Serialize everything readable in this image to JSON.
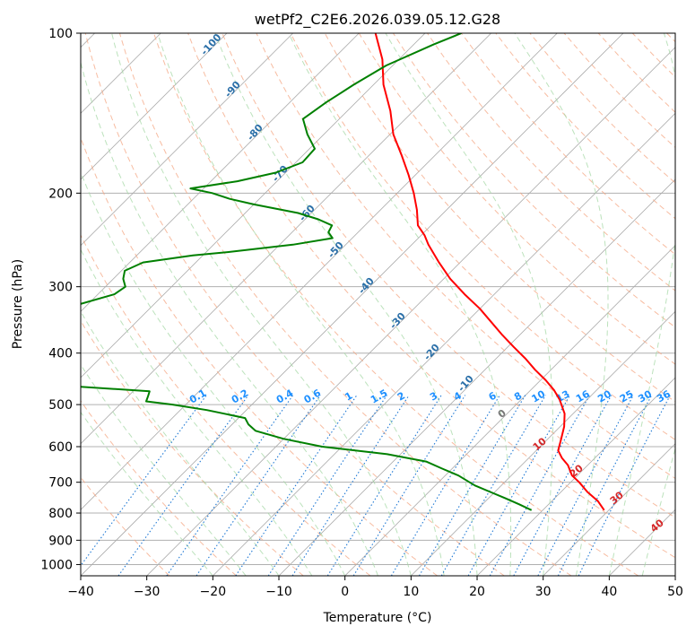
{
  "chart_data": {
    "type": "line",
    "title": "wetPf2_C2E6.2026.039.05.12.G28",
    "xlabel": "Temperature (°C)",
    "ylabel": "Pressure (hPa)",
    "xlim": [
      -40,
      50
    ],
    "ylim": [
      1050,
      100
    ],
    "x_ticks": [
      -40,
      -30,
      -20,
      -10,
      0,
      10,
      20,
      30,
      40,
      50
    ],
    "y_ticks": [
      100,
      200,
      300,
      400,
      500,
      600,
      700,
      800,
      900,
      1000
    ],
    "skew": 45,
    "colors": {
      "temperature": "#ff0000",
      "dewpoint": "#008000",
      "isotherm": "#999999",
      "dry": "#f4a582",
      "moist": "#a6d8a6",
      "mixing": "#1e78d4"
    },
    "series": [
      {
        "name": "Temperature",
        "pressure": [
          790,
          760,
          730,
          700,
          680,
          650,
          630,
          610,
          580,
          550,
          520,
          490,
          470,
          450,
          430,
          410,
          390,
          370,
          350,
          330,
          310,
          290,
          270,
          250,
          240,
          230,
          215,
          200,
          185,
          170,
          155,
          140,
          125,
          112,
          100
        ],
        "values": [
          29.3,
          27,
          24,
          21.3,
          19.2,
          17,
          15,
          13.3,
          12,
          10.6,
          8.7,
          5.9,
          3.6,
          0.8,
          -2.4,
          -5.5,
          -9,
          -12.6,
          -16.2,
          -20,
          -24.5,
          -29,
          -33.2,
          -37.5,
          -39.5,
          -42,
          -44.5,
          -47.5,
          -51,
          -55,
          -59.5,
          -63.5,
          -68.5,
          -72.5,
          -77.5
        ]
      },
      {
        "name": "Dewpoint",
        "pressure": [
          790,
          770,
          750,
          730,
          710,
          680,
          660,
          640,
          620,
          600,
          580,
          560,
          545,
          530,
          512,
          500,
          493,
          482,
          472,
          462,
          455,
          440,
          420,
          400,
          385,
          370,
          345,
          330,
          310,
          300,
          290,
          280,
          270,
          262,
          258,
          250,
          243,
          237,
          230,
          224,
          218,
          210,
          205,
          200,
          196,
          190,
          183,
          175,
          165,
          155,
          145,
          135,
          125,
          115,
          105,
          100
        ],
        "values": [
          18.3,
          15.5,
          12.5,
          9.3,
          6,
          2,
          -1.5,
          -5,
          -12,
          -23,
          -30,
          -35.5,
          -37.5,
          -39,
          -46,
          -52,
          -56.5,
          -57,
          -57.5,
          -69.5,
          -79,
          -83.5,
          -84.5,
          -85,
          -85.5,
          -86,
          -86,
          -83,
          -77.5,
          -77,
          -78.5,
          -79.5,
          -78,
          -71.5,
          -66.5,
          -58,
          -53,
          -54.5,
          -55,
          -58,
          -62,
          -70,
          -74.5,
          -78,
          -82,
          -76,
          -71.5,
          -69,
          -69.2,
          -72.5,
          -75.5,
          -74.5,
          -73,
          -71,
          -67,
          -64.5
        ]
      }
    ],
    "mixing_ratio_labels": [
      "0.1",
      "0.2",
      "0.4",
      "0.6",
      "1",
      "1.5",
      "2",
      "3",
      "4",
      "6",
      "8",
      "10",
      "13",
      "16",
      "20",
      "25",
      "30",
      "36"
    ],
    "mixing_ratios": [
      0.1,
      0.2,
      0.4,
      0.6,
      1,
      1.5,
      2,
      3,
      4,
      6,
      8,
      10,
      13,
      16,
      20,
      25,
      30,
      36
    ],
    "dry_adiabat_labels": [
      "-100",
      "-90",
      "-80",
      "-70",
      "-60",
      "-50",
      "-40",
      "-30",
      "-20",
      "-10"
    ],
    "moist_adiabat_labels": [
      "0",
      "10",
      "20",
      "30",
      "40"
    ]
  }
}
